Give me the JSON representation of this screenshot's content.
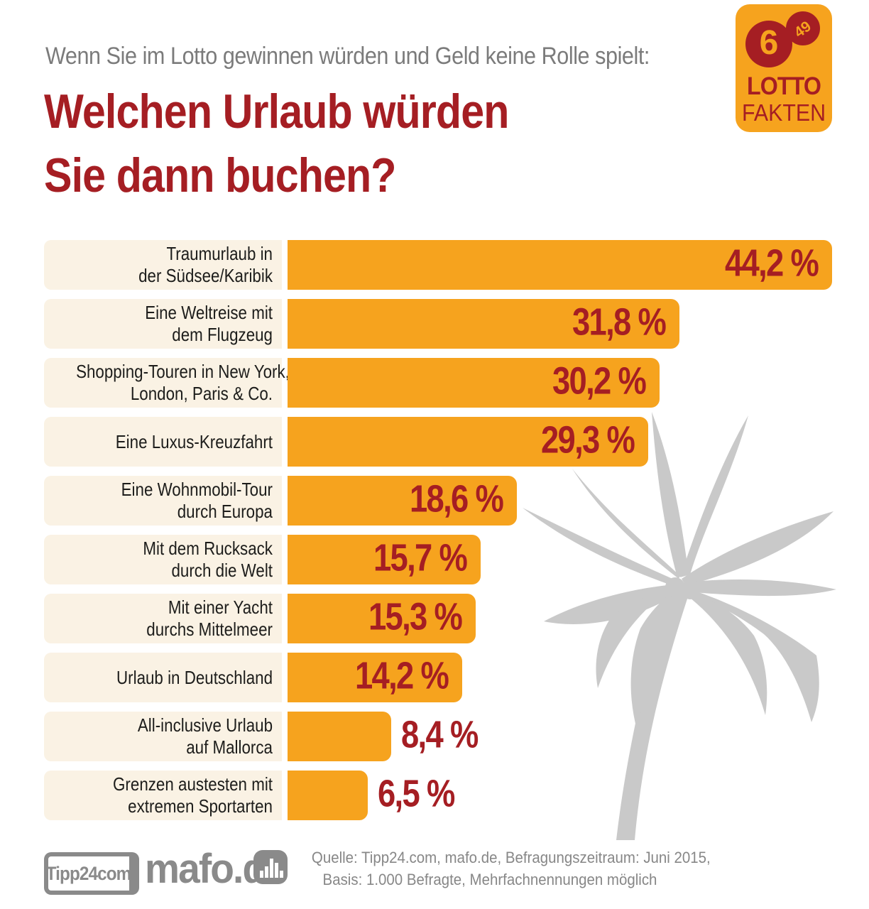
{
  "header": {
    "kicker": "Wenn Sie im Lotto gewinnen würden und Geld keine Rolle spielt:",
    "title_line1": "Welchen Urlaub würden",
    "title_line2": "Sie dann buchen?"
  },
  "badge": {
    "ball_big": "6",
    "ball_small": "49",
    "word1": "LOTTO",
    "word2": "FAKTEN"
  },
  "chart_data": {
    "type": "bar",
    "orientation": "horizontal",
    "title": "Welchen Urlaub würden Sie dann buchen?",
    "unit": "%",
    "xlim": [
      0,
      47
    ],
    "grid": false,
    "legend": false,
    "bar_color": "#f6a31e",
    "value_color": "#a51e23",
    "label_bg_color": "#faf2e4",
    "categories": [
      "Traumurlaub in der Südsee/Karibik",
      "Eine Weltreise mit dem Flugzeug",
      "Shopping-Touren in New York, London, Paris & Co.",
      "Eine Luxus-Kreuzfahrt",
      "Eine Wohnmobil-Tour durch Europa",
      "Mit dem Rucksack durch die Welt",
      "Mit einer Yacht durchs Mittelmeer",
      "Urlaub in Deutschland",
      "All-inclusive Urlaub auf Mallorca",
      "Grenzen austesten mit extremen Sportarten"
    ],
    "labels": [
      [
        "Traumurlaub in",
        "der Südsee/Karibik"
      ],
      [
        "Eine Weltreise mit",
        "dem Flugzeug"
      ],
      [
        "Shopping-Touren in New York,",
        "London, Paris & Co."
      ],
      [
        "Eine Luxus-Kreuzfahrt"
      ],
      [
        "Eine Wohnmobil-Tour",
        "durch Europa"
      ],
      [
        "Mit dem Rucksack",
        "durch die Welt"
      ],
      [
        "Mit einer Yacht",
        "durchs Mittelmeer"
      ],
      [
        "Urlaub in Deutschland"
      ],
      [
        "All-inclusive Urlaub",
        "auf Mallorca"
      ],
      [
        "Grenzen austesten mit",
        "extremen Sportarten"
      ]
    ],
    "values": [
      44.2,
      31.8,
      30.2,
      29.3,
      18.6,
      15.7,
      15.3,
      14.2,
      8.4,
      6.5
    ],
    "value_labels": [
      "44,2 %",
      "31,8 %",
      "30,2 %",
      "29,3 %",
      "18,6 %",
      "15,7 %",
      "15,3 %",
      "14,2 %",
      "8,4 %",
      "6,5 %"
    ]
  },
  "footer": {
    "logo_tipp24": "Tipp24com",
    "logo_mafo": "mafo.de",
    "source_line1": "Quelle: Tipp24.com, mafo.de, Befragungszeitraum: Juni 2015,",
    "source_line2": "Basis: 1.000 Befragte, Mehrfachnennungen möglich"
  },
  "colors": {
    "orange": "#f6a31e",
    "dark_red": "#a51e23",
    "cream": "#faf2e4",
    "gray_text": "#7b7b7b",
    "palm_gray": "#c9c9c9",
    "footer_gray": "#8a8a8a"
  }
}
